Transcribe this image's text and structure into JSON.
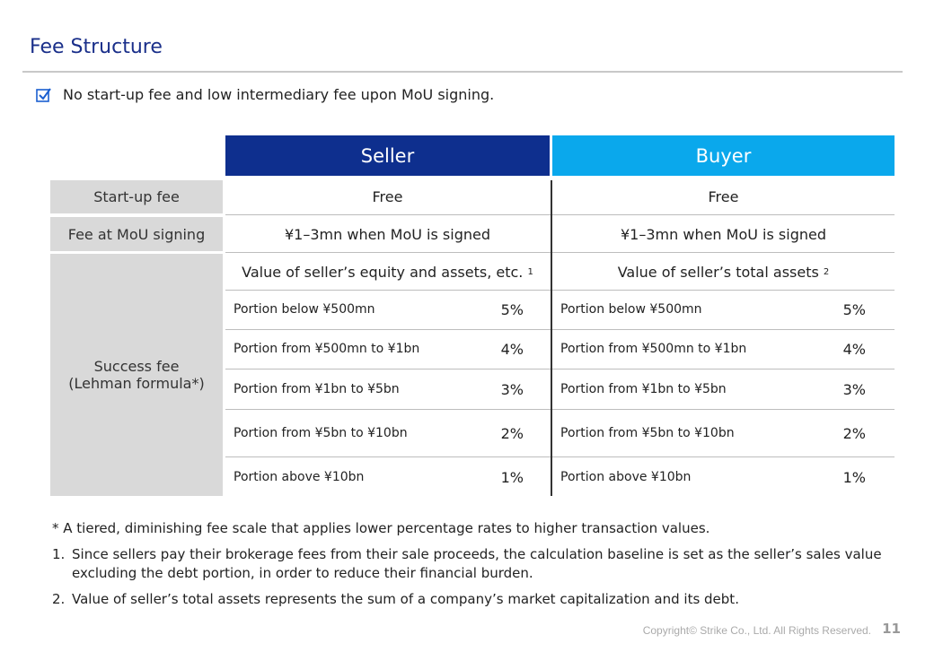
{
  "title": "Fee Structure",
  "bullet": "No start-up fee and low intermediary fee upon MoU signing.",
  "headers": {
    "seller": "Seller",
    "buyer": "Buyer"
  },
  "rows": {
    "startup": {
      "label": "Start-up fee",
      "seller": "Free",
      "buyer": "Free"
    },
    "mou": {
      "label": "Fee at MoU signing",
      "seller": "¥1–3mn when MoU is signed",
      "buyer": "¥1–3mn when MoU is signed"
    },
    "success": {
      "label_line1": "Success fee",
      "label_line2": "(Lehman formula*)",
      "seller_basis": "Value of seller’s equity and assets, etc.",
      "seller_basis_sup": "1",
      "buyer_basis": "Value of seller’s total assets",
      "buyer_basis_sup": "2",
      "tiers": [
        {
          "label": "Portion below ¥500mn",
          "pct": "5%"
        },
        {
          "label": "Portion from ¥500mn to ¥1bn",
          "pct": "4%"
        },
        {
          "label": "Portion from ¥1bn to ¥5bn",
          "pct": "3%"
        },
        {
          "label": "Portion from ¥5bn to ¥10bn",
          "pct": "2%"
        },
        {
          "label": "Portion above ¥10bn",
          "pct": "1%"
        }
      ]
    }
  },
  "notes": {
    "star": "* A tiered, diminishing fee scale that applies lower percentage rates to higher transaction values.",
    "n1_num": "1.",
    "n1": "Since sellers pay their brokerage fees from their sale proceeds, the calculation baseline is set as the seller’s sales value excluding the debt portion, in order to reduce their financial burden.",
    "n2_num": "2.",
    "n2": "Value of seller’s total assets represents the sum of a company’s market capitalization and its debt."
  },
  "footer": {
    "copyright": "Copyright© Strike Co., Ltd. All Rights Reserved.",
    "page": "11"
  },
  "colors": {
    "title": "#1a2f8a",
    "seller": "#0e2f8e",
    "buyer": "#0aa8ec",
    "label_bg": "#d9d9d9"
  }
}
